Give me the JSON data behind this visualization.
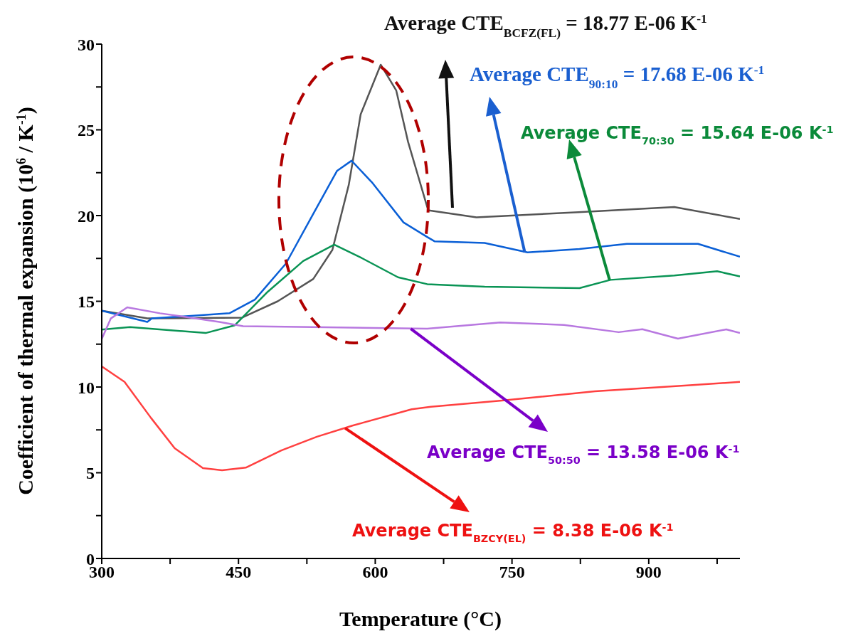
{
  "chart_data": {
    "type": "line",
    "xlabel": "Temperature (°C)",
    "ylabel": "Coefficient of thermal expansion (10$^{6}$ / K$^{-1}$)",
    "xlim": [
      300,
      1000
    ],
    "xticks": [
      300,
      {
        "value": 375,
        "label": null
      },
      450,
      {
        "value": 525,
        "label": null
      },
      600,
      {
        "value": 675,
        "label": null
      },
      750,
      {
        "value": 825,
        "label": null
      },
      900,
      {
        "value": 975,
        "label": null
      }
    ],
    "ylim": [
      0,
      30
    ],
    "yticks": [
      0,
      {
        "value": 2.5,
        "label": null
      },
      5,
      {
        "value": 7.5,
        "label": null
      },
      10,
      {
        "value": 12.5,
        "label": null
      },
      15,
      {
        "value": 17.5,
        "label": null
      },
      20,
      {
        "value": 22.5,
        "label": null
      },
      25,
      {
        "value": 27.5,
        "label": null
      },
      30
    ],
    "annotations": [
      "Average CTE$_{BCFZ(FL)}$ = 18.77 E-06 K$^{-1}$",
      {
        "text": "Average CTE$_{90:10}$ = 17.68 E-06 K$^{-1}$",
        "x": 764,
        "y": 17.85
      },
      {
        "text": "Average CTE$_{70:30}$ = 15.64 E-06 K$^{-1}$",
        "x": 857,
        "y": 16.25
      },
      {
        "text": "Average CTE$_{50:50}$ = 13.58 E-06 K$^{-1}$",
        "x": 639,
        "y": 13.4
      },
      {
        "text": "Average CTE$_{BZCY(EL)}$ = 8.38 E-06 K$^{-1}$",
        "x": 567,
        "y": 7.6
      }
    ],
    "series": [
      {
        "color": "#555555",
        "x": [
          300,
          350,
          454,
          493,
          532,
          553,
          571,
          584,
          606,
          623,
          636,
          657,
          659,
          711,
          823,
          928,
          1000
        ],
        "values": [
          14.45,
          14.0,
          14.05,
          15.0,
          16.3,
          18.0,
          21.8,
          25.9,
          28.8,
          27.3,
          24.3,
          20.5,
          20.3,
          19.9,
          20.2,
          20.5,
          19.8
        ]
      },
      {
        "color": "#0a5fd6",
        "x": [
          300,
          350,
          355,
          440,
          468,
          502,
          532,
          558,
          574,
          597,
          631,
          657,
          665,
          720,
          767,
          824,
          876,
          954,
          1000
        ],
        "values": [
          14.45,
          13.8,
          14.0,
          14.3,
          15.1,
          17.2,
          20.1,
          22.6,
          23.2,
          21.9,
          19.6,
          18.75,
          18.5,
          18.4,
          17.85,
          18.05,
          18.35,
          18.35,
          17.6
        ]
      },
      {
        "color": "#0a9455",
        "x": [
          300,
          331,
          414,
          446,
          482,
          521,
          555,
          586,
          625,
          657,
          720,
          824,
          858,
          928,
          975,
          1000
        ],
        "values": [
          13.35,
          13.5,
          13.15,
          13.6,
          15.55,
          17.35,
          18.3,
          17.5,
          16.4,
          16.0,
          15.85,
          15.77,
          16.25,
          16.5,
          16.75,
          16.45
        ]
      },
      {
        "color": "#b878e0",
        "x": [
          300,
          310,
          328,
          364,
          429,
          455,
          532,
          657,
          737,
          807,
          867,
          893,
          932,
          985,
          1000
        ],
        "values": [
          12.8,
          14.0,
          14.65,
          14.3,
          13.8,
          13.55,
          13.5,
          13.4,
          13.77,
          13.62,
          13.2,
          13.37,
          12.82,
          13.36,
          13.15
        ]
      },
      {
        "color": "#ff4040",
        "x": [
          300,
          325,
          354,
          380,
          411,
          432,
          458,
          497,
          536,
          575,
          640,
          661,
          737,
          841,
          945,
          1000
        ],
        "values": [
          11.2,
          10.3,
          8.2,
          6.43,
          5.27,
          5.15,
          5.3,
          6.3,
          7.1,
          7.75,
          8.7,
          8.85,
          9.2,
          9.75,
          10.1,
          10.3
        ]
      }
    ]
  }
}
